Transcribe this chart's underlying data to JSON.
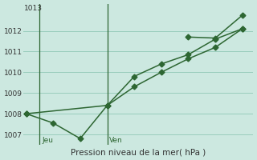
{
  "xlabel": "Pression niveau de la mer( hPa )",
  "background_color": "#cce8e0",
  "plot_bg_color": "#cce8e0",
  "grid_color": "#99ccbb",
  "line_color": "#2d6632",
  "line1_x": [
    0,
    1,
    2,
    3,
    4,
    5,
    6,
    7,
    8
  ],
  "line1_y": [
    1008.0,
    1007.55,
    1006.8,
    1008.4,
    1009.8,
    1010.4,
    1010.85,
    1011.6,
    1012.1
  ],
  "line2_x": [
    0,
    3,
    4,
    5,
    6,
    7,
    8
  ],
  "line2_y": [
    1008.0,
    1008.4,
    1009.3,
    1010.0,
    1010.65,
    1011.2,
    1012.1
  ],
  "line3_x": [
    6,
    7,
    8
  ],
  "line3_y": [
    1011.7,
    1011.65,
    1012.75
  ],
  "ylim_min": 1006.5,
  "ylim_max": 1013.3,
  "xlim_min": -0.1,
  "xlim_max": 8.4,
  "yticks": [
    1007,
    1008,
    1009,
    1010,
    1011,
    1012
  ],
  "ytop_label": "1013",
  "vline_x": [
    0.5,
    3.0
  ],
  "vline_labels": [
    "Jeu",
    "Ven"
  ],
  "markersize": 3.5,
  "linewidth": 1.1
}
